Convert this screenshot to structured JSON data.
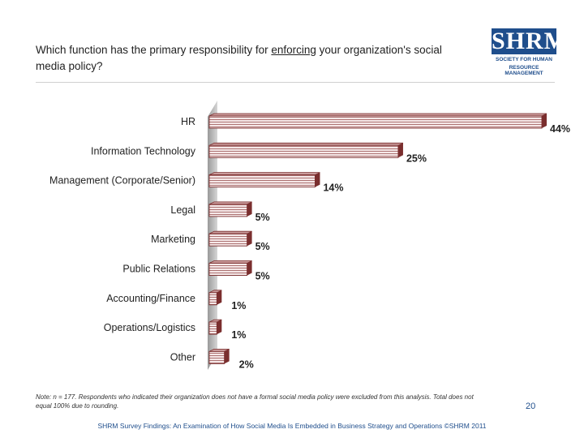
{
  "header": {
    "title_pre": "Which function has the primary responsibility for ",
    "title_emph": "enforcing",
    "title_post": " your organization's social media policy?"
  },
  "logo": {
    "text": "SHRM",
    "sub1": "SOCIETY FOR HUMAN",
    "sub2": "RESOURCE MANAGEMENT"
  },
  "chart_data": {
    "type": "bar",
    "orientation": "horizontal",
    "title": "Which function has the primary responsibility for enforcing your organization's social media policy?",
    "categories": [
      "HR",
      "Information Technology",
      "Management (Corporate/Senior)",
      "Legal",
      "Marketing",
      "Public Relations",
      "Accounting/Finance",
      "Operations/Logistics",
      "Other"
    ],
    "values": [
      44,
      25,
      14,
      5,
      5,
      5,
      1,
      1,
      2
    ],
    "value_labels": [
      "44%",
      "25%",
      "14%",
      "5%",
      "5%",
      "5%",
      "1%",
      "1%",
      "2%"
    ],
    "unit": "%",
    "xlim": [
      0,
      44
    ],
    "bar_color": "#7a2e2e",
    "bar_fill": "#f4e6e6"
  },
  "note": "Note: n = 177. Respondents who indicated their organization does not have a formal social media policy were excluded from this analysis. Total does not equal 100% due to rounding.",
  "page_number": "20",
  "footer": "SHRM Survey Findings: An Examination of How Social Media Is Embedded in Business Strategy and Operations ©SHRM 2011"
}
